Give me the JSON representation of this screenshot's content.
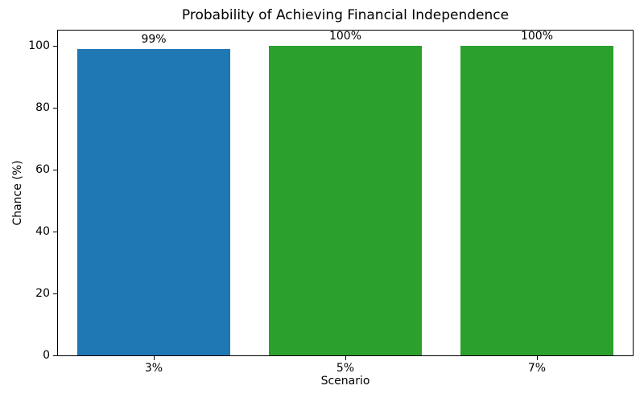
{
  "chart_data": {
    "type": "bar",
    "title": "Probability of Achieving Financial Independence",
    "xlabel": "Scenario",
    "ylabel": "Chance (%)",
    "categories": [
      "3%",
      "5%",
      "7%"
    ],
    "values": [
      99,
      100,
      100
    ],
    "bar_labels": [
      "99%",
      "100%",
      "100%"
    ],
    "bar_colors": [
      "#1f77b4",
      "#2ca02c",
      "#2ca02c"
    ],
    "ylim": [
      0,
      105
    ],
    "yticks": [
      0,
      20,
      40,
      60,
      80,
      100
    ],
    "grid": false,
    "legend_position": "none",
    "spine_color": "#000000",
    "background_color": "#ffffff"
  }
}
